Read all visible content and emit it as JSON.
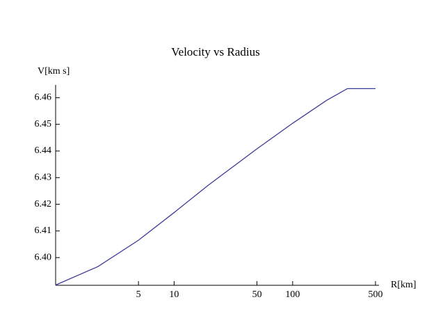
{
  "chart_data": {
    "type": "line",
    "title": "Velocity vs Radius",
    "x_label": "R[km]",
    "y_label": "V[km s]",
    "xscale": "log",
    "xlim": [
      1,
      500
    ],
    "ylim": [
      6.3896,
      6.4648
    ],
    "xticks": [
      5,
      10,
      50,
      100,
      500
    ],
    "yticks": [
      {
        "value": 6.4,
        "label": "6.40"
      },
      6.41,
      6.42,
      6.43,
      6.44,
      6.45,
      6.46
    ],
    "grid": false,
    "series": [
      {
        "name": "V",
        "color": "#3b3b99",
        "x": [
          1,
          2.27,
          5,
          10,
          19.6,
          50,
          100,
          193.6,
          290,
          500
        ],
        "values": [
          6.3897,
          6.3966,
          6.4065,
          6.4169,
          6.4273,
          6.4408,
          6.4504,
          6.459,
          6.4634,
          6.4634
        ]
      }
    ]
  }
}
